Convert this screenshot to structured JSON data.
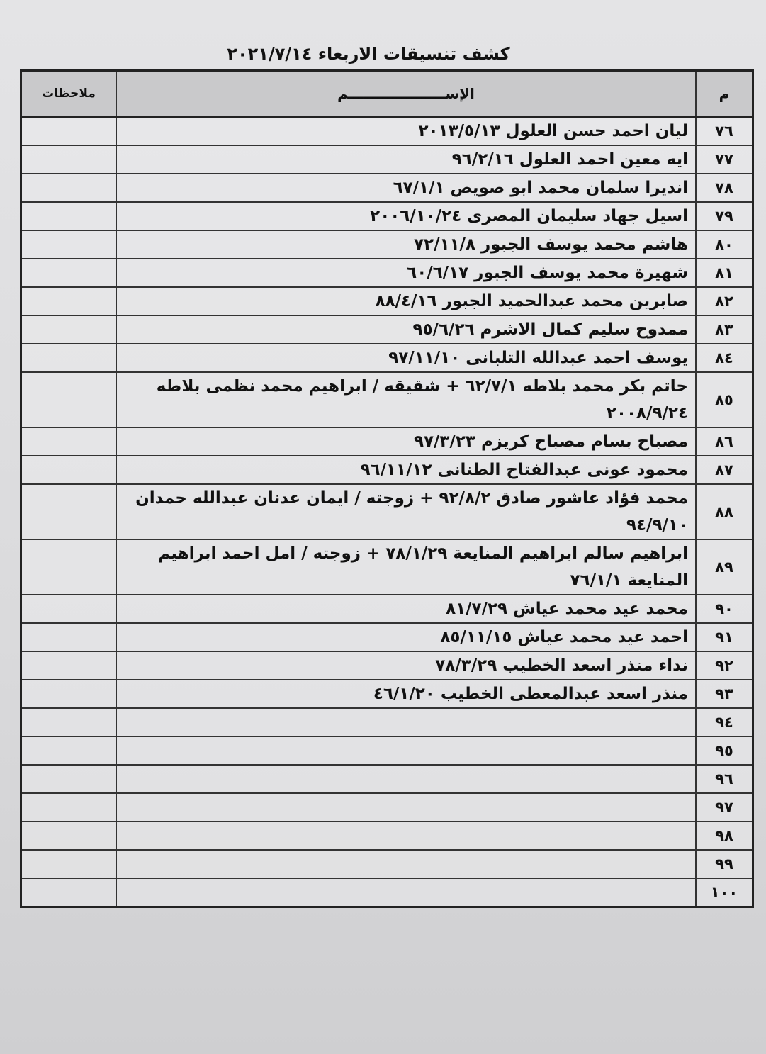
{
  "title": "كشف تنسيقات الاربعاء ٢٠٢١/٧/١٤",
  "headers": {
    "num": "م",
    "name": "الإســــــــــــــــــــم",
    "notes": "ملاحظات"
  },
  "rows": [
    {
      "num": "٧٦",
      "name": "ليان احمد حسن العلول ٢٠١٣/٥/١٣",
      "notes": ""
    },
    {
      "num": "٧٧",
      "name": "ايه معين احمد العلول ٩٦/٢/١٦",
      "notes": ""
    },
    {
      "num": "٧٨",
      "name": "انديرا سلمان محمد ابو صويص ٦٧/١/١",
      "notes": ""
    },
    {
      "num": "٧٩",
      "name": "اسيل جهاد سليمان المصرى ٢٠٠٦/١٠/٢٤",
      "notes": ""
    },
    {
      "num": "٨٠",
      "name": "هاشم محمد يوسف الجبور ٧٢/١١/٨",
      "notes": ""
    },
    {
      "num": "٨١",
      "name": "شهيرة محمد يوسف الجبور ٦٠/٦/١٧",
      "notes": ""
    },
    {
      "num": "٨٢",
      "name": "صابرين محمد عبدالحميد الجبور ٨٨/٤/١٦",
      "notes": ""
    },
    {
      "num": "٨٣",
      "name": "ممدوح سليم كمال الاشرم ٩٥/٦/٢٦",
      "notes": ""
    },
    {
      "num": "٨٤",
      "name": "يوسف احمد عبدالله التلبانى ٩٧/١١/١٠",
      "notes": ""
    },
    {
      "num": "٨٥",
      "name": "حاتم بكر محمد بلاطه ٦٢/٧/١ + شقيقه / ابراهيم محمد نظمى بلاطه ٢٠٠٨/٩/٢٤",
      "notes": ""
    },
    {
      "num": "٨٦",
      "name": "مصباح بسام مصباح كريزم ٩٧/٣/٢٣",
      "notes": ""
    },
    {
      "num": "٨٧",
      "name": "محمود عونى عبدالفتاح الطنانى ٩٦/١١/١٢",
      "notes": ""
    },
    {
      "num": "٨٨",
      "name": "محمد فؤاد عاشور صادق ٩٢/٨/٢ + زوجته / ايمان عدنان عبدالله حمدان ٩٤/٩/١٠",
      "notes": ""
    },
    {
      "num": "٨٩",
      "name": "ابراهيم سالم ابراهيم المنايعة ٧٨/١/٢٩ + زوجته / امل احمد ابراهيم المنايعة ٧٦/١/١",
      "notes": ""
    },
    {
      "num": "٩٠",
      "name": "محمد عيد محمد عياش ٨١/٧/٢٩",
      "notes": ""
    },
    {
      "num": "٩١",
      "name": "احمد عيد محمد عياش ٨٥/١١/١٥",
      "notes": ""
    },
    {
      "num": "٩٢",
      "name": "نداء منذر اسعد الخطيب ٧٨/٣/٢٩",
      "notes": ""
    },
    {
      "num": "٩٣",
      "name": "منذر اسعد عبدالمعطى الخطيب ٤٦/١/٢٠",
      "notes": ""
    },
    {
      "num": "٩٤",
      "name": "",
      "notes": ""
    },
    {
      "num": "٩٥",
      "name": "",
      "notes": ""
    },
    {
      "num": "٩٦",
      "name": "",
      "notes": ""
    },
    {
      "num": "٩٧",
      "name": "",
      "notes": ""
    },
    {
      "num": "٩٨",
      "name": "",
      "notes": ""
    },
    {
      "num": "٩٩",
      "name": "",
      "notes": ""
    },
    {
      "num": "١٠٠",
      "name": "",
      "notes": ""
    }
  ]
}
